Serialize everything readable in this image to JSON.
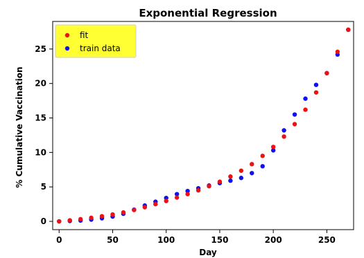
{
  "chart_data": {
    "type": "scatter",
    "title": "Exponential Regression",
    "xlabel": "Day",
    "ylabel": "% Cumulative Vaccination",
    "xlim": [
      -6,
      275
    ],
    "ylim": [
      -1.2,
      29
    ],
    "xticks": [
      0,
      50,
      100,
      150,
      200,
      250
    ],
    "yticks": [
      0,
      5,
      10,
      15,
      20,
      25
    ],
    "grid": false,
    "legend_position": "top-left",
    "legend_background": "#ffff33",
    "series": [
      {
        "name": "fit",
        "color": "#ee1111",
        "x": [
          0,
          10,
          20,
          30,
          40,
          50,
          60,
          70,
          80,
          90,
          100,
          110,
          120,
          130,
          140,
          150,
          160,
          170,
          180,
          190,
          200,
          210,
          220,
          230,
          240,
          250,
          260,
          270
        ],
        "y": [
          0.0,
          0.15,
          0.32,
          0.52,
          0.75,
          1.0,
          1.3,
          1.65,
          2.05,
          2.5,
          2.95,
          3.45,
          3.95,
          4.5,
          5.1,
          5.75,
          6.5,
          7.35,
          8.3,
          9.5,
          10.8,
          12.3,
          14.1,
          16.2,
          18.7,
          21.5,
          24.6,
          27.8
        ]
      },
      {
        "name": "train data",
        "color": "#1111ee",
        "x": [
          0,
          10,
          20,
          30,
          40,
          50,
          60,
          70,
          80,
          90,
          100,
          110,
          120,
          130,
          140,
          150,
          160,
          170,
          180,
          190,
          200,
          210,
          220,
          230,
          240,
          250,
          260,
          270
        ],
        "y": [
          0.0,
          0.05,
          0.12,
          0.25,
          0.45,
          0.7,
          1.1,
          1.7,
          2.3,
          2.85,
          3.4,
          3.95,
          4.4,
          4.8,
          5.2,
          5.55,
          5.9,
          6.3,
          7.0,
          8.0,
          10.3,
          13.2,
          15.5,
          17.8,
          19.8,
          21.5,
          24.2,
          27.8
        ]
      }
    ]
  }
}
